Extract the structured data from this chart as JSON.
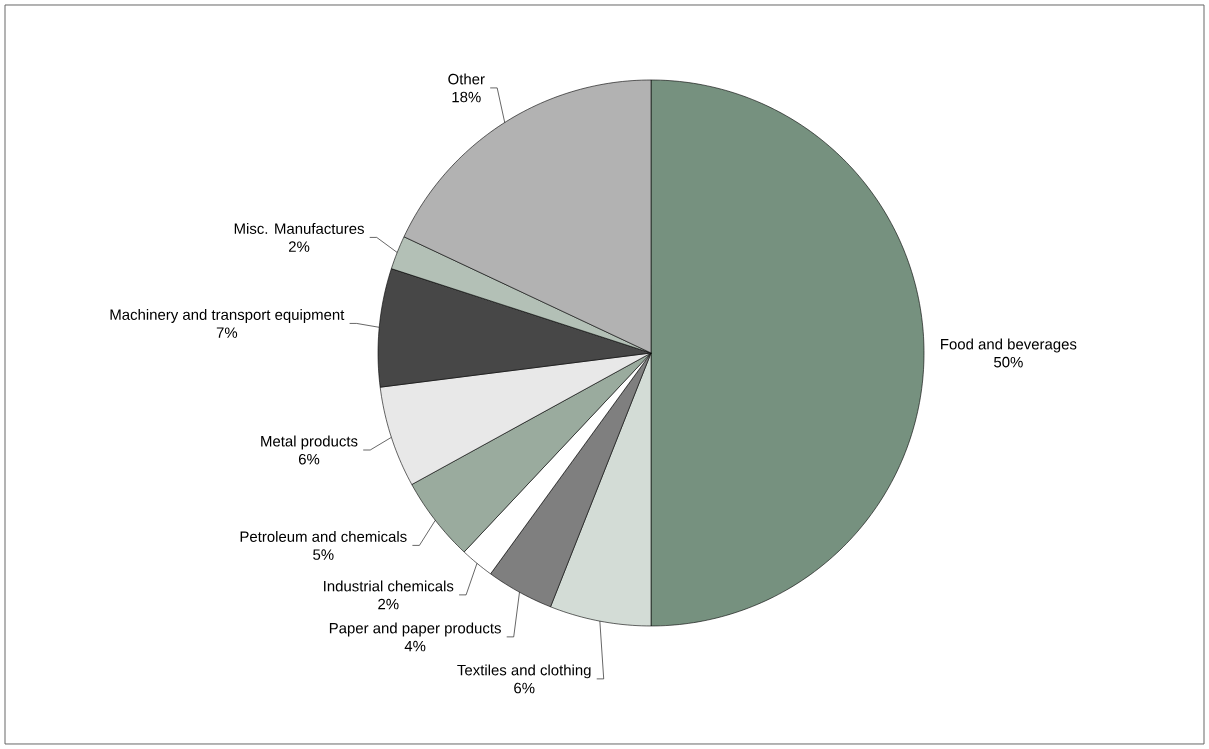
{
  "chart_data": {
    "type": "pie",
    "categories": [
      "Food and beverages",
      "Textiles and clothing",
      "Paper and paper products",
      "Industrial chemicals",
      "Petroleum and chemicals",
      "Metal products",
      "Machinery and transport equipment",
      "Misc. Manufactures",
      "Other"
    ],
    "values": [
      50,
      6,
      4,
      2,
      5,
      6,
      7,
      2,
      18
    ],
    "value_labels": [
      "50%",
      "6%",
      "4%",
      "2%",
      "5%",
      "6%",
      "7%",
      "2%",
      "18%"
    ],
    "colors": [
      "#76917f",
      "#d3dcd6",
      "#7f7f7f",
      "#ffffff",
      "#9aab9e",
      "#e8e8e8",
      "#474747",
      "#b3c0b6",
      "#b2b2b2"
    ]
  }
}
